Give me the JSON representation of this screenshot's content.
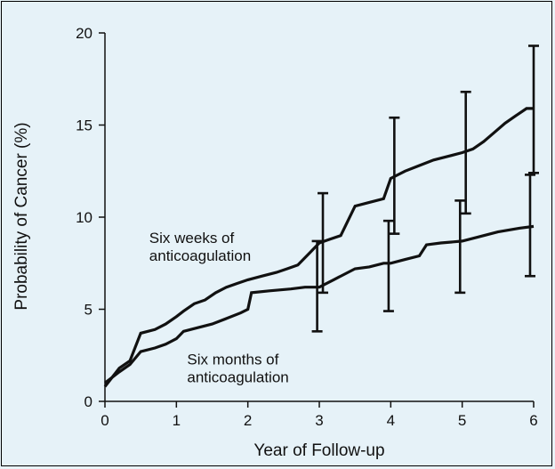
{
  "chart_data": {
    "type": "line",
    "title": "",
    "xlabel": "Year of Follow-up",
    "ylabel": "Probability of Cancer (%)",
    "xlim": [
      0,
      6
    ],
    "ylim": [
      0,
      20
    ],
    "xticks": [
      "0",
      "1",
      "2",
      "3",
      "4",
      "5",
      "6"
    ],
    "yticks": [
      "0",
      "5",
      "10",
      "15",
      "20"
    ],
    "grid": false,
    "legend": "none",
    "colors": {
      "line": "#111111",
      "background": "#e6f2f8"
    },
    "series": [
      {
        "name": "Six weeks of anticoagulation",
        "step": true,
        "x": [
          0,
          0.1,
          0.2,
          0.35,
          0.5,
          0.7,
          0.85,
          1.0,
          1.1,
          1.25,
          1.4,
          1.55,
          1.7,
          1.85,
          2.0,
          2.2,
          2.4,
          2.55,
          2.7,
          2.85,
          3.0,
          3.15,
          3.3,
          3.5,
          3.7,
          3.9,
          4.0,
          4.2,
          4.4,
          4.6,
          4.8,
          5.0,
          5.15,
          5.3,
          5.45,
          5.6,
          5.75,
          5.9,
          6.0
        ],
        "y": [
          0.8,
          1.3,
          1.8,
          2.2,
          3.7,
          3.9,
          4.2,
          4.6,
          4.9,
          5.3,
          5.5,
          5.9,
          6.2,
          6.4,
          6.6,
          6.8,
          7.0,
          7.2,
          7.4,
          8.0,
          8.6,
          8.8,
          9.0,
          10.6,
          10.8,
          11.0,
          12.1,
          12.5,
          12.8,
          13.1,
          13.3,
          13.5,
          13.7,
          14.1,
          14.6,
          15.1,
          15.5,
          15.9,
          15.9
        ],
        "error_bars": [
          {
            "x": 3.05,
            "low": 5.9,
            "high": 11.3
          },
          {
            "x": 4.05,
            "low": 9.1,
            "high": 15.4
          },
          {
            "x": 5.05,
            "low": 10.2,
            "high": 16.8
          },
          {
            "x": 6.0,
            "low": 12.4,
            "high": 19.3
          }
        ]
      },
      {
        "name": "Six months of anticoagulation",
        "step": true,
        "x": [
          0,
          0.1,
          0.2,
          0.35,
          0.5,
          0.7,
          0.85,
          1.0,
          1.1,
          1.3,
          1.5,
          1.7,
          1.9,
          2.0,
          2.05,
          2.3,
          2.6,
          2.8,
          3.0,
          3.2,
          3.5,
          3.7,
          3.9,
          4.0,
          4.2,
          4.4,
          4.5,
          4.7,
          5.0,
          5.2,
          5.5,
          5.8,
          6.0
        ],
        "y": [
          1.0,
          1.3,
          1.6,
          2.0,
          2.7,
          2.9,
          3.1,
          3.4,
          3.8,
          4.0,
          4.2,
          4.5,
          4.8,
          5.0,
          5.9,
          6.0,
          6.1,
          6.2,
          6.2,
          6.6,
          7.2,
          7.3,
          7.5,
          7.5,
          7.7,
          7.9,
          8.5,
          8.6,
          8.7,
          8.9,
          9.2,
          9.4,
          9.5
        ],
        "error_bars": [
          {
            "x": 2.97,
            "low": 3.8,
            "high": 8.7
          },
          {
            "x": 3.97,
            "low": 4.9,
            "high": 9.8
          },
          {
            "x": 4.97,
            "low": 5.9,
            "high": 10.9
          },
          {
            "x": 5.95,
            "low": 6.8,
            "high": 12.3
          }
        ]
      }
    ],
    "annotations": [
      {
        "lines": [
          "Six weeks of",
          "anticoagulation"
        ],
        "anchor_x": 0.62,
        "anchor_y": 8.6
      },
      {
        "lines": [
          "Six months of",
          "anticoagulation"
        ],
        "anchor_x": 1.15,
        "anchor_y": 2.0
      }
    ]
  }
}
